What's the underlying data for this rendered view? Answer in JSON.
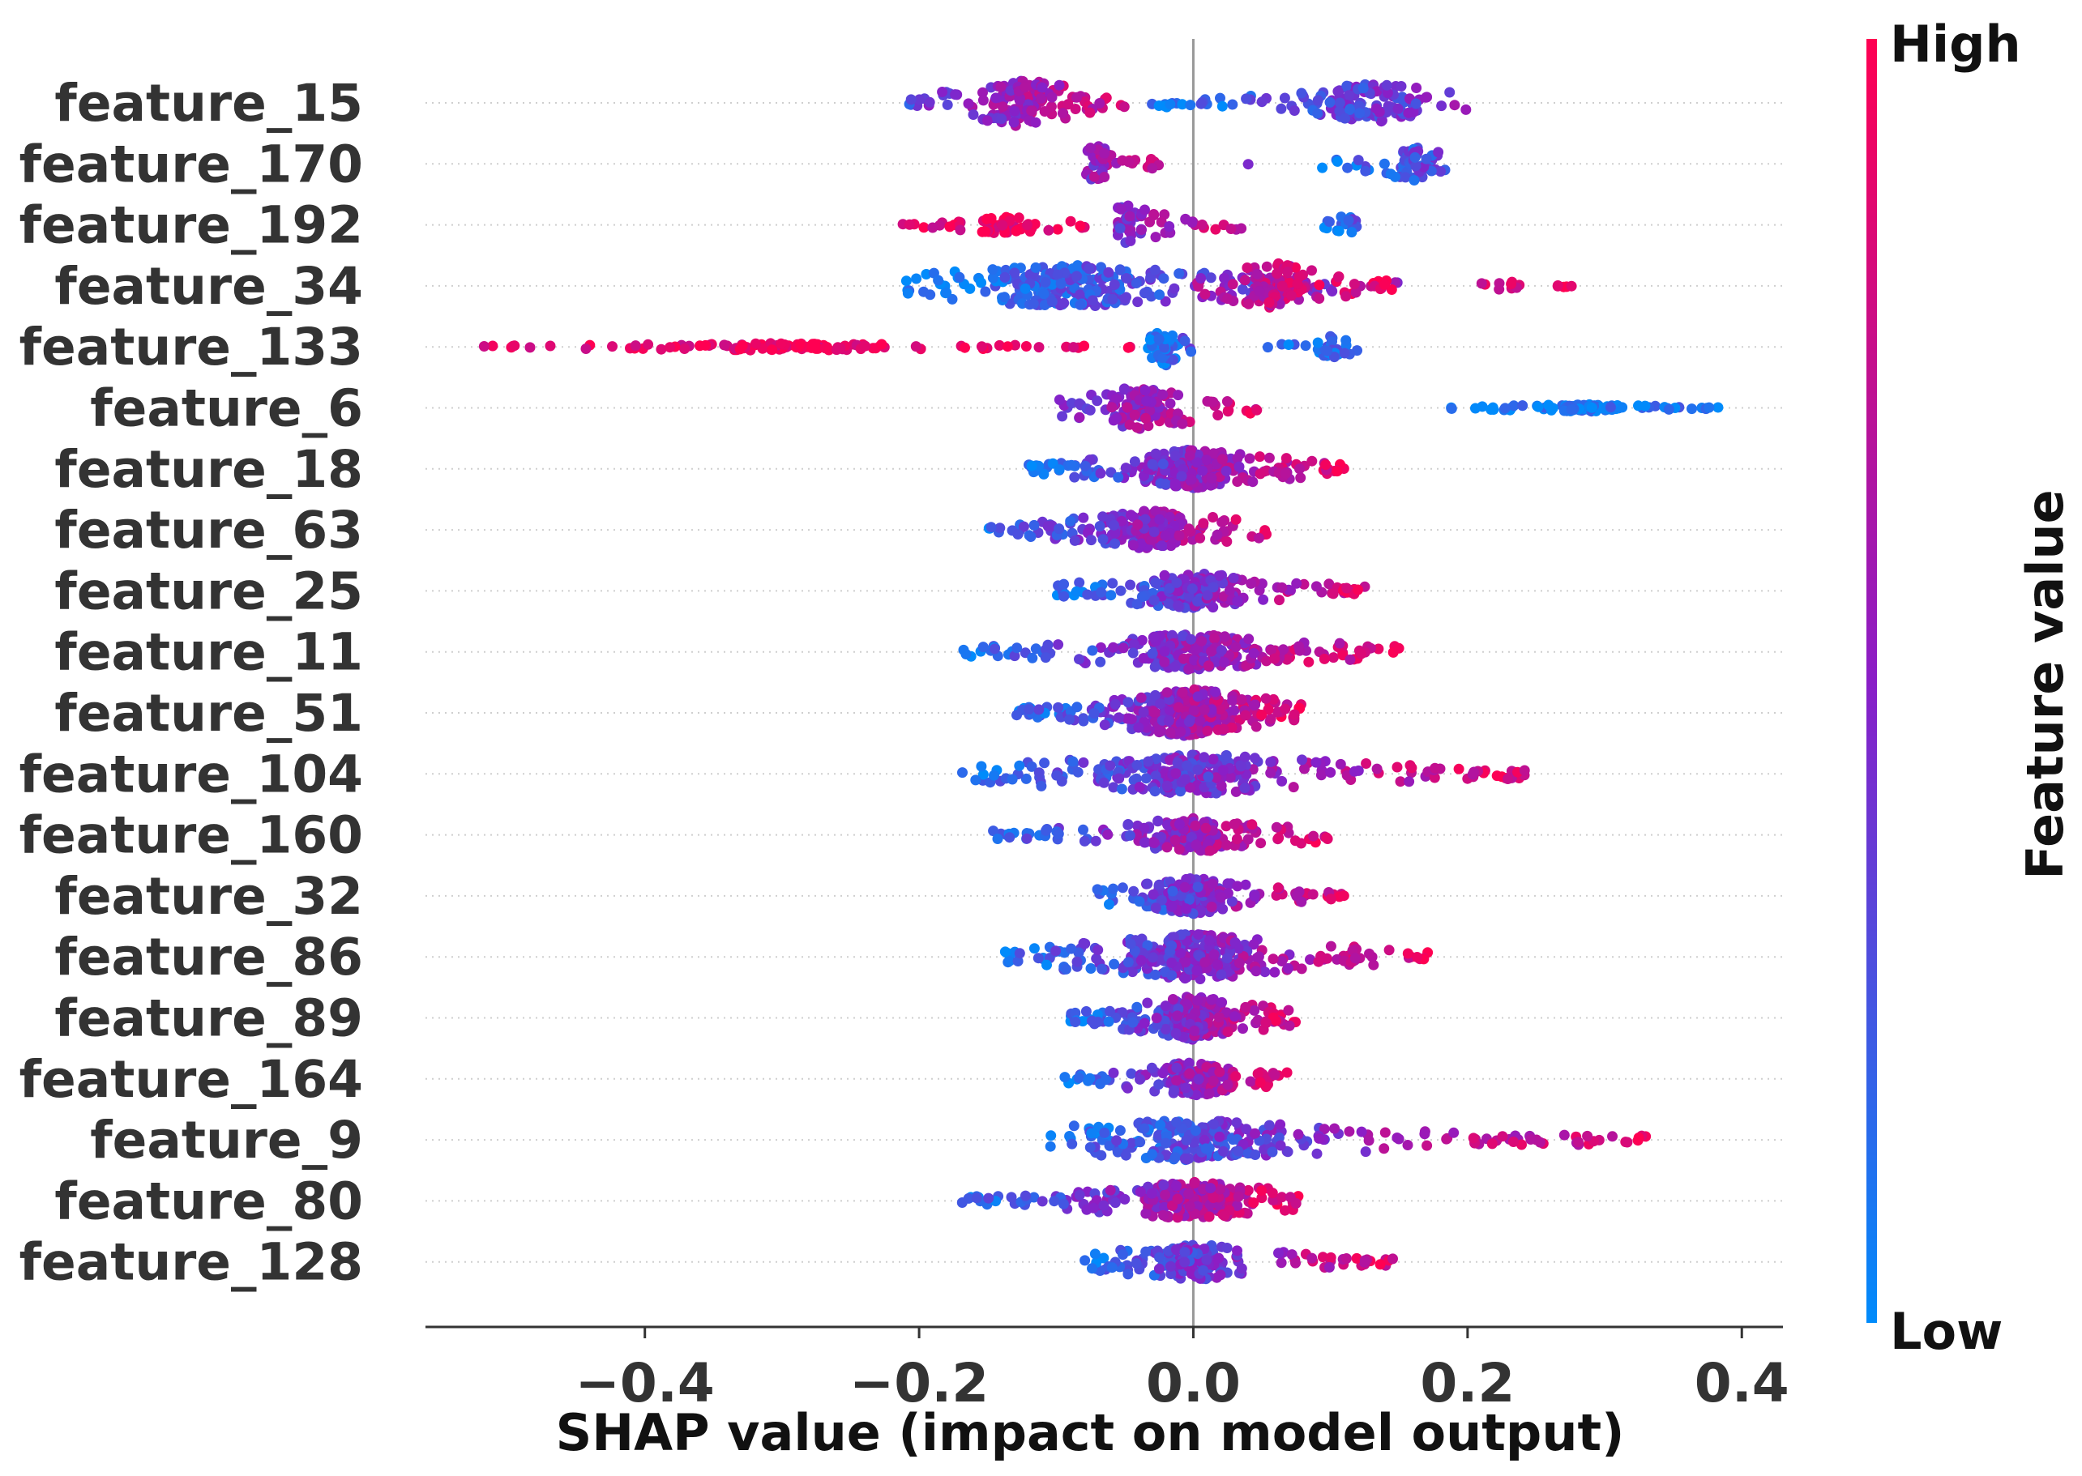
{
  "chart_data": {
    "type": "scatter",
    "subtype": "shap-beeswarm",
    "xlabel": "SHAP value (impact on model output)",
    "xlim": [
      -0.56,
      0.43
    ],
    "xticks": [
      -0.4,
      -0.2,
      0.0,
      0.2,
      0.4
    ],
    "xtick_labels": [
      "−0.4",
      "−0.2",
      "0.0",
      "0.2",
      "0.4"
    ],
    "colorbar": {
      "label": "Feature value",
      "high": "High",
      "low": "Low",
      "high_color": "#ff0052",
      "mid_color": "#8a1ec7",
      "low_color": "#008bfb"
    },
    "features": [
      {
        "name": "feature_15",
        "segments": [
          {
            "range": [
              -0.21,
              -0.05
            ],
            "center": -0.125,
            "n": 140,
            "lo": 0.25,
            "hi": 0.9,
            "h": 1.0
          },
          {
            "range": [
              -0.035,
              0.2
            ],
            "center": 0.13,
            "n": 150,
            "lo": 0.0,
            "hi": 0.55,
            "h": 0.8
          }
        ]
      },
      {
        "name": "feature_170",
        "segments": [
          {
            "range": [
              -0.078,
              -0.02
            ],
            "center": -0.07,
            "n": 50,
            "lo": 0.45,
            "hi": 0.95,
            "h": 0.8
          },
          {
            "range": [
              0.04,
              0.04
            ],
            "center": 0.04,
            "n": 1,
            "lo": 0.3,
            "hi": 0.5,
            "h": 0.1
          },
          {
            "range": [
              0.09,
              0.185
            ],
            "center": 0.16,
            "n": 60,
            "lo": 0.0,
            "hi": 0.4,
            "h": 0.7
          }
        ]
      },
      {
        "name": "feature_192",
        "segments": [
          {
            "range": [
              -0.22,
              -0.075
            ],
            "center": -0.14,
            "n": 55,
            "lo": 0.85,
            "hi": 1.0,
            "h": 0.35
          },
          {
            "range": [
              -0.055,
              0.04
            ],
            "center": -0.048,
            "n": 55,
            "lo": 0.4,
            "hi": 0.9,
            "h": 0.8
          },
          {
            "range": [
              0.095,
              0.12
            ],
            "center": 0.115,
            "n": 18,
            "lo": 0.0,
            "hi": 0.3,
            "h": 0.6
          }
        ]
      },
      {
        "name": "feature_34",
        "segments": [
          {
            "range": [
              -0.21,
              0.15
            ],
            "center": -0.09,
            "n": 260,
            "lo": 0.0,
            "hi": 0.6,
            "h": 0.9
          },
          {
            "range": [
              0.0,
              0.15
            ],
            "center": 0.06,
            "n": 110,
            "lo": 0.55,
            "hi": 1.0,
            "h": 0.95
          },
          {
            "range": [
              0.21,
              0.28
            ],
            "center": 0.23,
            "n": 14,
            "lo": 0.85,
            "hi": 1.0,
            "h": 0.2
          }
        ]
      },
      {
        "name": "feature_133",
        "segments": [
          {
            "range": [
              -0.52,
              -0.04
            ],
            "center": -0.3,
            "n": 120,
            "lo": 0.88,
            "hi": 1.0,
            "h": 0.15
          },
          {
            "range": [
              -0.035,
              0.0
            ],
            "center": -0.02,
            "n": 50,
            "lo": 0.0,
            "hi": 0.3,
            "h": 0.8
          },
          {
            "range": [
              0.05,
              0.12
            ],
            "center": 0.1,
            "n": 30,
            "lo": 0.0,
            "hi": 0.25,
            "h": 0.45
          }
        ]
      },
      {
        "name": "feature_6",
        "segments": [
          {
            "range": [
              -0.1,
              0.048
            ],
            "center": -0.035,
            "n": 120,
            "lo": 0.3,
            "hi": 0.95,
            "h": 0.95
          },
          {
            "range": [
              0.175,
              0.385
            ],
            "center": 0.28,
            "n": 110,
            "lo": 0.0,
            "hi": 0.12,
            "h": 0.15
          }
        ]
      },
      {
        "name": "feature_18",
        "segments": [
          {
            "range": [
              -0.12,
              0.11
            ],
            "center": 0.0,
            "n": 260,
            "lo": 0.0,
            "hi": 1.0,
            "h": 0.8
          }
        ]
      },
      {
        "name": "feature_63",
        "segments": [
          {
            "range": [
              -0.15,
              0.06
            ],
            "center": -0.03,
            "n": 230,
            "lo": 0.0,
            "hi": 1.0,
            "h": 0.8
          }
        ]
      },
      {
        "name": "feature_25",
        "segments": [
          {
            "range": [
              -0.1,
              0.14
            ],
            "center": 0.0,
            "n": 200,
            "lo": 0.0,
            "hi": 1.0,
            "h": 0.75
          }
        ]
      },
      {
        "name": "feature_11",
        "segments": [
          {
            "range": [
              -0.17,
              0.15
            ],
            "center": 0.0,
            "n": 230,
            "lo": 0.0,
            "hi": 1.0,
            "h": 0.75
          }
        ]
      },
      {
        "name": "feature_51",
        "segments": [
          {
            "range": [
              -0.13,
              0.08
            ],
            "center": 0.0,
            "n": 330,
            "lo": 0.0,
            "hi": 1.0,
            "h": 1.0
          }
        ]
      },
      {
        "name": "feature_104",
        "segments": [
          {
            "range": [
              -0.17,
              0.25
            ],
            "center": 0.0,
            "n": 280,
            "lo": 0.0,
            "hi": 1.0,
            "h": 0.85
          }
        ]
      },
      {
        "name": "feature_160",
        "segments": [
          {
            "range": [
              -0.15,
              0.1
            ],
            "center": 0.0,
            "n": 170,
            "lo": 0.0,
            "hi": 1.0,
            "h": 0.7
          }
        ]
      },
      {
        "name": "feature_32",
        "segments": [
          {
            "range": [
              -0.07,
              0.11
            ],
            "center": 0.0,
            "n": 180,
            "lo": 0.0,
            "hi": 1.0,
            "h": 0.75
          }
        ]
      },
      {
        "name": "feature_86",
        "segments": [
          {
            "range": [
              -0.14,
              0.175
            ],
            "center": 0.0,
            "n": 320,
            "lo": 0.0,
            "hi": 1.0,
            "h": 0.95
          }
        ]
      },
      {
        "name": "feature_89",
        "segments": [
          {
            "range": [
              -0.09,
              0.08
            ],
            "center": 0.0,
            "n": 250,
            "lo": 0.0,
            "hi": 1.0,
            "h": 0.9
          }
        ]
      },
      {
        "name": "feature_164",
        "segments": [
          {
            "range": [
              -0.095,
              0.07
            ],
            "center": 0.0,
            "n": 140,
            "lo": 0.0,
            "hi": 1.0,
            "h": 0.7
          }
        ]
      },
      {
        "name": "feature_9",
        "segments": [
          {
            "range": [
              -0.11,
              0.33
            ],
            "center": 0.0,
            "n": 260,
            "lo": 0.0,
            "hi": 1.0,
            "h": 0.85
          }
        ]
      },
      {
        "name": "feature_80",
        "segments": [
          {
            "range": [
              -0.17,
              0.08
            ],
            "center": 0.0,
            "n": 250,
            "lo": 0.0,
            "hi": 1.0,
            "h": 0.8
          }
        ]
      },
      {
        "name": "feature_128",
        "segments": [
          {
            "range": [
              -0.08,
              0.15
            ],
            "center": 0.0,
            "n": 170,
            "lo": 0.0,
            "hi": 1.0,
            "h": 0.75
          }
        ]
      }
    ]
  }
}
